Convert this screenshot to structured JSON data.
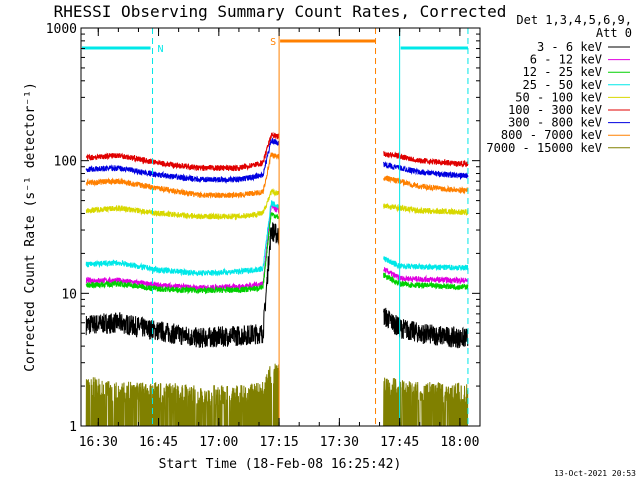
{
  "chart_data": {
    "type": "line",
    "title": "RHESSI Observing Summary Count Rates, Corrected",
    "xlabel": "Start Time (18-Feb-08 16:25:42)",
    "ylabel": "Corrected Count Rate (s⁻¹ detector⁻¹)",
    "y_scale": "log",
    "ylim": [
      1,
      1000
    ],
    "xlim": [
      "16:25:42",
      "18:05:00"
    ],
    "x_ticks": [
      "16:30",
      "16:45",
      "17:00",
      "17:15",
      "17:30",
      "17:45",
      "18:00"
    ],
    "y_ticks": [
      "1",
      "10",
      "100",
      "1000"
    ],
    "legend_header": [
      "Det 1,3,4,5,6,9,",
      "Att 0"
    ],
    "legend_position": "right",
    "series": [
      {
        "name": "3 - 6 keV",
        "color": "#000000",
        "x": [
          "16:27",
          "16:35",
          "16:45",
          "16:55",
          "17:05",
          "17:11",
          "17:13",
          "17:45",
          "17:50",
          "18:00",
          "18:02"
        ],
        "values": [
          5.8,
          6.0,
          5.2,
          4.6,
          4.8,
          5.0,
          30,
          5.5,
          5.0,
          4.6,
          4.6
        ]
      },
      {
        "name": "6 - 12 keV",
        "color": "#e000e0",
        "x": [
          "16:27",
          "16:35",
          "16:45",
          "16:55",
          "17:05",
          "17:11",
          "17:13",
          "17:45",
          "17:50",
          "18:00",
          "18:02"
        ],
        "values": [
          12.5,
          12.5,
          11.5,
          11.0,
          11.2,
          11.8,
          45,
          13,
          12.8,
          12.5,
          12.5
        ]
      },
      {
        "name": "12 - 25 keV",
        "color": "#00d000",
        "x": [
          "16:27",
          "16:35",
          "16:45",
          "16:55",
          "17:05",
          "17:11",
          "17:13",
          "17:45",
          "17:50",
          "18:00",
          "18:02"
        ],
        "values": [
          11.5,
          11.8,
          10.8,
          10.5,
          10.6,
          11.0,
          40,
          11.8,
          11.5,
          11.2,
          11.2
        ]
      },
      {
        "name": "25 - 50 keV",
        "color": "#00e8e8",
        "x": [
          "16:27",
          "16:35",
          "16:45",
          "16:55",
          "17:05",
          "17:11",
          "17:13",
          "17:45",
          "17:50",
          "18:00",
          "18:02"
        ],
        "values": [
          16.5,
          17,
          15,
          14.2,
          14.6,
          15.3,
          48,
          16,
          15.8,
          15.6,
          15.6
        ]
      },
      {
        "name": "50 - 100 keV",
        "color": "#d8d800",
        "x": [
          "16:27",
          "16:35",
          "16:45",
          "16:55",
          "17:05",
          "17:11",
          "17:13",
          "17:45",
          "17:50",
          "18:00",
          "18:02"
        ],
        "values": [
          42,
          44,
          40,
          38,
          38,
          40,
          58,
          44,
          42,
          41,
          41
        ]
      },
      {
        "name": "100 - 300 keV",
        "color": "#e00000",
        "x": [
          "16:27",
          "16:35",
          "16:45",
          "16:55",
          "17:05",
          "17:11",
          "17:13",
          "17:45",
          "17:50",
          "18:00",
          "18:02"
        ],
        "values": [
          105,
          110,
          96,
          88,
          88,
          96,
          155,
          108,
          100,
          95,
          95
        ]
      },
      {
        "name": "300 - 800 keV",
        "color": "#0000e0",
        "x": [
          "16:27",
          "16:35",
          "16:45",
          "16:55",
          "17:05",
          "17:11",
          "17:13",
          "17:45",
          "17:50",
          "18:00",
          "18:02"
        ],
        "values": [
          86,
          88,
          78,
          72,
          72,
          78,
          140,
          88,
          82,
          77,
          77
        ]
      },
      {
        "name": "800 - 7000 keV",
        "color": "#ff8000",
        "x": [
          "16:27",
          "16:35",
          "16:45",
          "16:55",
          "17:05",
          "17:11",
          "17:13",
          "17:45",
          "17:50",
          "18:00",
          "18:02"
        ],
        "values": [
          68,
          70,
          62,
          55,
          55,
          58,
          110,
          70,
          64,
          60,
          60
        ]
      },
      {
        "name": "7000 - 15000 keV",
        "color": "#808000",
        "x": [
          "16:27",
          "16:35",
          "16:45",
          "16:55",
          "17:05",
          "17:11",
          "17:13",
          "17:45",
          "17:50",
          "18:00",
          "18:02"
        ],
        "values": [
          2.0,
          1.8,
          1.8,
          1.7,
          1.7,
          1.8,
          2.5,
          1.9,
          1.8,
          1.8,
          1.8
        ]
      }
    ],
    "flag_bars": [
      {
        "label": "N",
        "color": "#00e8e8",
        "start": "16:25:42",
        "end": "16:43:30"
      },
      {
        "label": "S",
        "color": "#ff8000",
        "start": "17:15:00",
        "end": "17:39:00"
      },
      {
        "label": "",
        "color": "#00e8e8",
        "start": "17:45:00",
        "end": "18:02:00"
      }
    ],
    "night_markers": [
      {
        "color": "#00e8e8",
        "time": "16:25:42",
        "style": "solid"
      },
      {
        "color": "#00e8e8",
        "time": "16:43:30",
        "style": "dashed"
      },
      {
        "color": "#ff8000",
        "time": "17:15:00",
        "style": "solid"
      },
      {
        "color": "#ff8000",
        "time": "17:39:00",
        "style": "dashed"
      },
      {
        "color": "#00e8e8",
        "time": "17:45:00",
        "style": "solid"
      },
      {
        "color": "#00e8e8",
        "time": "18:02:00",
        "style": "dashed"
      }
    ],
    "data_gap": [
      "17:15:00",
      "17:41:00"
    ],
    "timestamp": "13-Oct-2021 20:53",
    "grid": false
  }
}
